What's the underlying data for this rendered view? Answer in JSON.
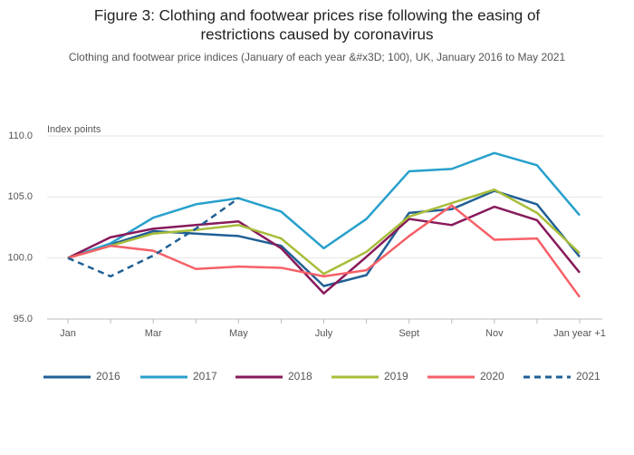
{
  "chart_data": {
    "type": "line",
    "title": [
      "Figure 3: Clothing and footwear prices rise following the easing of",
      "restrictions caused by coronavirus"
    ],
    "subtitle": "Clothing and footwear price indices (January of each year &#x3D; 100), UK, January 2016 to May 2021",
    "y_label": "Index points",
    "categories": [
      "Jan",
      null,
      "Mar",
      null,
      "May",
      null,
      "July",
      null,
      "Sept",
      null,
      "Nov",
      null,
      "Jan year +1"
    ],
    "ylim": [
      95,
      110
    ],
    "yticks": [
      {
        "value": 95,
        "label": "95.0"
      },
      {
        "value": 100,
        "label": "100.0"
      },
      {
        "value": 105,
        "label": "105.0"
      },
      {
        "value": 110,
        "label": "110.0"
      }
    ],
    "grid": true,
    "legend": "bottom",
    "series": [
      {
        "name": "2016",
        "color": "#206095",
        "dash": false,
        "values": [
          100,
          101.1,
          102.2,
          102.0,
          101.8,
          101.0,
          97.7,
          98.6,
          103.7,
          104.0,
          105.5,
          104.4,
          100.1
        ]
      },
      {
        "name": "2017",
        "color": "#27a0cc",
        "dash": false,
        "values": [
          100,
          101.2,
          103.3,
          104.4,
          104.9,
          103.8,
          100.8,
          103.2,
          107.1,
          107.3,
          108.6,
          107.6,
          103.5
        ]
      },
      {
        "name": "2018",
        "color": "#871a5b",
        "dash": false,
        "values": [
          100,
          101.7,
          102.4,
          102.7,
          103.0,
          100.8,
          97.1,
          100.1,
          103.2,
          102.7,
          104.2,
          103.1,
          98.8
        ]
      },
      {
        "name": "2019",
        "color": "#a8bd3a",
        "dash": false,
        "values": [
          100,
          101.0,
          102.0,
          102.3,
          102.7,
          101.6,
          98.7,
          100.5,
          103.4,
          104.5,
          105.6,
          103.7,
          100.4
        ]
      },
      {
        "name": "2020",
        "color": "#f66068",
        "dash": false,
        "values": [
          100,
          101.0,
          100.6,
          99.1,
          99.3,
          99.2,
          98.5,
          99.0,
          101.8,
          104.3,
          101.5,
          101.6,
          96.8
        ]
      },
      {
        "name": "2021",
        "color": "#206095",
        "dash": true,
        "values": [
          100,
          98.5,
          100.2,
          102.4,
          104.9,
          null,
          null,
          null,
          null,
          null,
          null,
          null,
          null
        ]
      }
    ]
  }
}
